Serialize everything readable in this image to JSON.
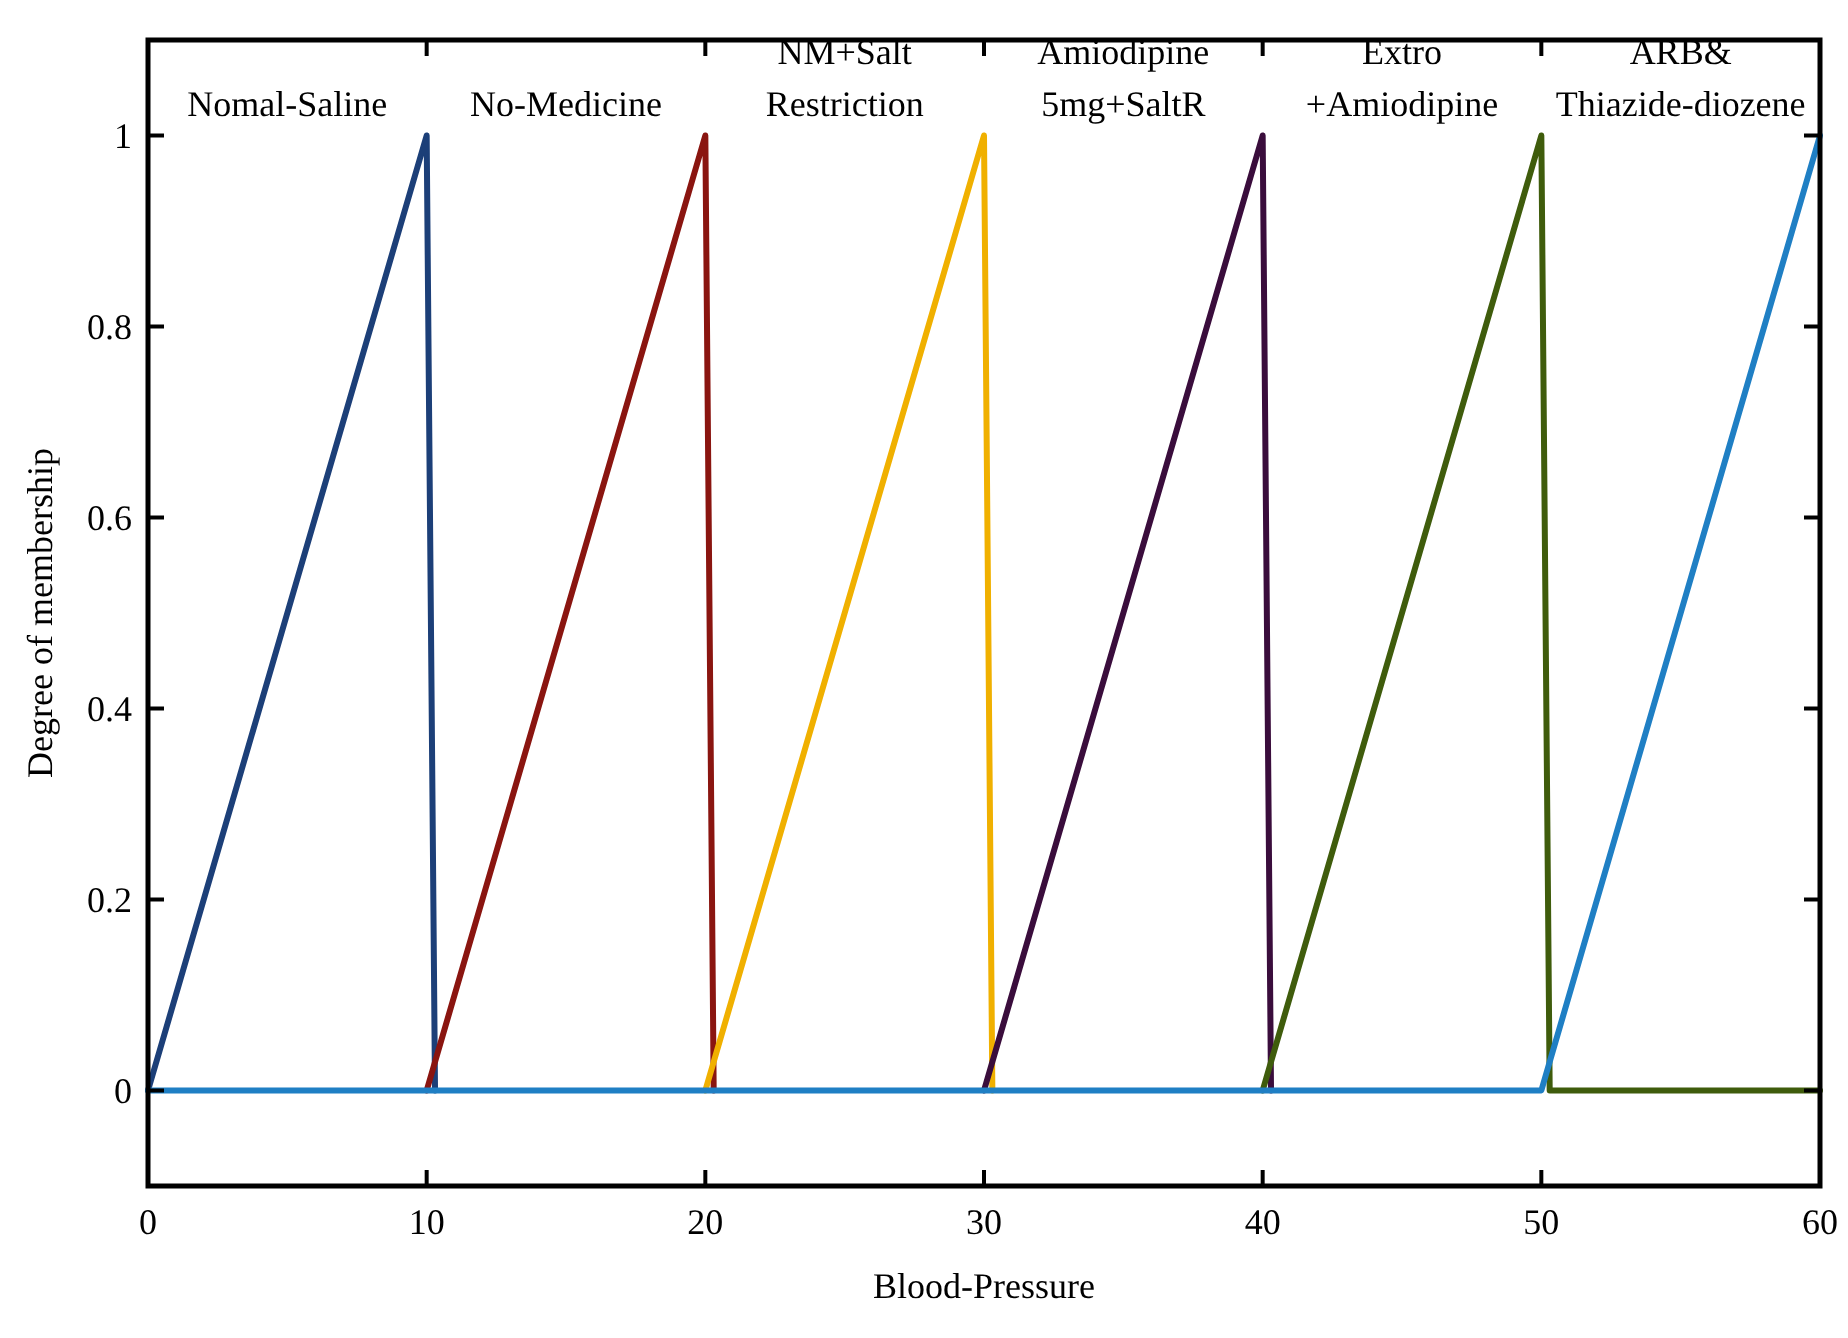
{
  "chart_data": {
    "type": "line",
    "xlabel": "Blood-Pressure",
    "ylabel": "Degree of membership",
    "xlim": [
      0,
      60
    ],
    "xticks": [
      0,
      10,
      20,
      30,
      40,
      50,
      60
    ],
    "ylim": [
      -0.1,
      1.1
    ],
    "yticks": [
      0,
      0.2,
      0.4,
      0.6,
      0.8,
      1
    ],
    "grid": false,
    "marker": "none",
    "line_style": "solid",
    "series": [
      {
        "color": "#1c3f78",
        "x": [
          0,
          10,
          10.3
        ],
        "values": [
          0,
          1,
          0
        ]
      },
      {
        "color": "#8a1510",
        "x": [
          10,
          20,
          20.3
        ],
        "values": [
          0,
          1,
          0
        ]
      },
      {
        "color": "#f0b000",
        "x": [
          20,
          30,
          30.3
        ],
        "values": [
          0,
          1,
          0
        ]
      },
      {
        "color": "#3a0d3c",
        "x": [
          30,
          40,
          40.3
        ],
        "values": [
          0,
          1,
          0
        ]
      },
      {
        "color": "#3f5c0c",
        "x": [
          40,
          50,
          50.3,
          60
        ],
        "values": [
          0,
          1,
          0,
          0
        ]
      },
      {
        "color": "#1f7fc4",
        "x": [
          0,
          50,
          60
        ],
        "values": [
          0,
          0,
          1
        ]
      }
    ],
    "annotations": [
      "Nomal-Saline",
      "No-Medicine",
      "NM+Salt\nRestriction",
      "Amiodipine\n5mg+SaltR",
      "Extro\n+Amiodipine",
      "ARB&\nThiazide-diozene"
    ]
  }
}
